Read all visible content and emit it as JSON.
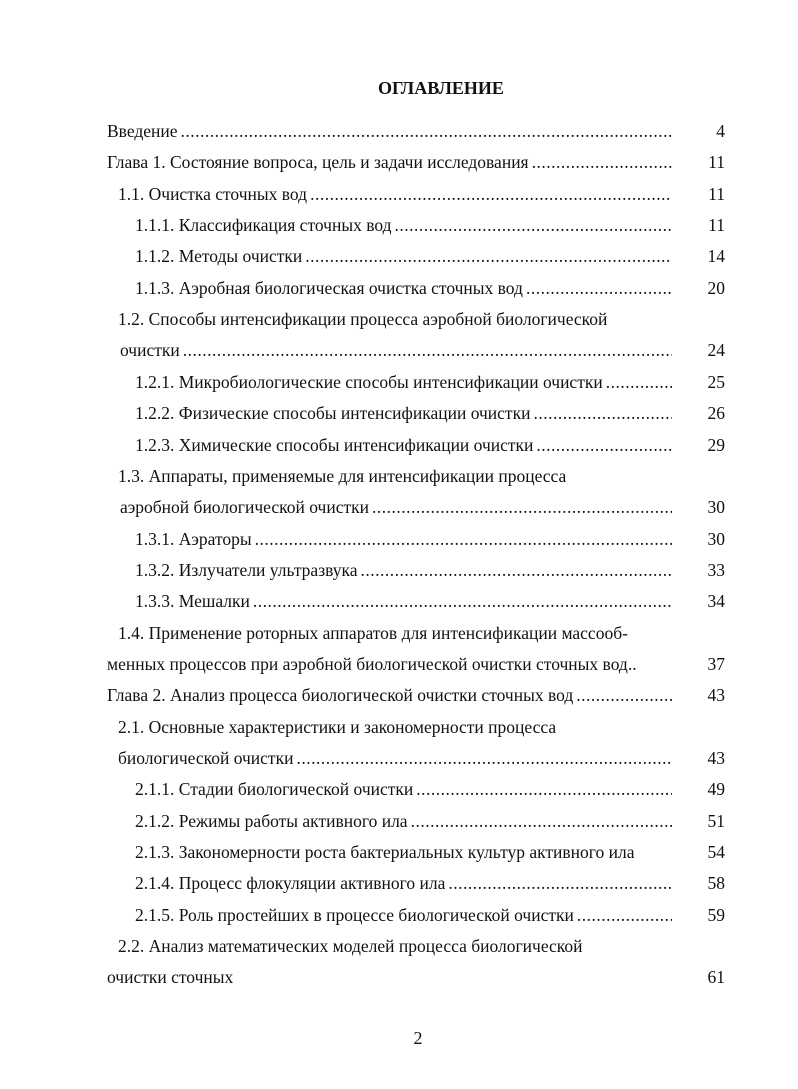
{
  "title": "ОГЛАВЛЕНИЕ",
  "entries": [
    {
      "level": 0,
      "lines": [
        {
          "text": "Введение",
          "page": "4"
        }
      ]
    },
    {
      "level": 0,
      "lines": [
        {
          "text": "Глава 1. Состояние вопроса, цель и задачи исследования",
          "page": "11"
        }
      ]
    },
    {
      "level": 1,
      "lines": [
        {
          "text": "1.1. Очистка сточных вод",
          "page": "11"
        }
      ]
    },
    {
      "level": 2,
      "lines": [
        {
          "text": "1.1.1. Классификация сточных вод",
          "page": "11"
        }
      ]
    },
    {
      "level": 2,
      "lines": [
        {
          "text": "1.1.2. Методы очистки",
          "page": "14"
        }
      ]
    },
    {
      "level": 2,
      "lines": [
        {
          "text": "1.1.3. Аэробная биологическая очистка сточных вод",
          "page": "20"
        }
      ]
    },
    {
      "level": 1,
      "lines": [
        {
          "text": "1.2. Способы интенсификации процесса аэробной биологической"
        },
        {
          "text": "очистки",
          "page": "24",
          "indent": "c1b"
        }
      ]
    },
    {
      "level": 2,
      "lines": [
        {
          "text": "1.2.1. Микробиологические способы интенсификации очистки",
          "page": "25"
        }
      ]
    },
    {
      "level": 2,
      "lines": [
        {
          "text": "1.2.2. Физические способы интенсификации очистки",
          "page": "26"
        }
      ]
    },
    {
      "level": 2,
      "lines": [
        {
          "text": "1.2.3. Химические способы интенсификации очистки",
          "page": "29"
        }
      ]
    },
    {
      "level": 1,
      "lines": [
        {
          "text": "1.3. Аппараты, применяемые для интенсификации процесса"
        },
        {
          "text": "аэробной  биологической очистки",
          "page": "30",
          "indent": "c1b"
        }
      ]
    },
    {
      "level": 2,
      "lines": [
        {
          "text": "1.3.1. Аэраторы",
          "page": "30"
        }
      ]
    },
    {
      "level": 2,
      "lines": [
        {
          "text": "1.3.2. Излучатели ультразвука",
          "page": "33"
        }
      ]
    },
    {
      "level": 2,
      "lines": [
        {
          "text": "1.3.3. Мешалки",
          "page": "34"
        }
      ]
    },
    {
      "level": 1,
      "lines": [
        {
          "text": "1.4. Применение роторных аппаратов для интенсификации массооб-"
        },
        {
          "text": "менных процессов при аэробной биологической очистки сточных вод..",
          "page": "37",
          "indent": "c0",
          "noLead": true
        }
      ]
    },
    {
      "level": 0,
      "lines": [
        {
          "text": "Глава 2. Анализ процесса биологической очистки сточных вод",
          "page": "43"
        }
      ]
    },
    {
      "level": 1,
      "lines": [
        {
          "text": "2.1. Основные характеристики и закономерности процесса"
        },
        {
          "text": "биологической очистки",
          "page": "43",
          "indent": "c1"
        }
      ]
    },
    {
      "level": 2,
      "lines": [
        {
          "text": "2.1.1. Стадии биологической очистки",
          "page": "49"
        }
      ]
    },
    {
      "level": 2,
      "lines": [
        {
          "text": "2.1.2. Режимы работы активного ила",
          "page": "51"
        }
      ]
    },
    {
      "level": 2,
      "lines": [
        {
          "text": "2.1.3. Закономерности роста бактериальных культур активного ила",
          "page": "54",
          "noLead": true
        }
      ]
    },
    {
      "level": 2,
      "lines": [
        {
          "text": "2.1.4. Процесс флокуляции активного ила",
          "page": "58"
        }
      ]
    },
    {
      "level": 2,
      "lines": [
        {
          "text": "2.1.5. Роль простейших в процессе биологической очистки",
          "page": "59"
        }
      ]
    },
    {
      "level": 1,
      "lines": [
        {
          "text": "2.2. Анализ математических моделей процесса биологической"
        },
        {
          "text": "очистки сточных",
          "page": "61",
          "indent": "c0",
          "noLead": true
        }
      ]
    }
  ],
  "page_number": "2"
}
